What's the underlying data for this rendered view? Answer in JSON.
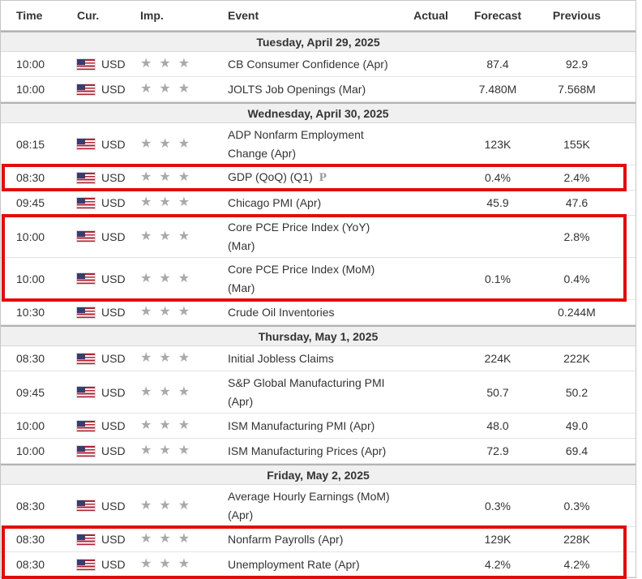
{
  "colors": {
    "highlight_border": "#e10c0c",
    "text": "#333333",
    "separator_bg": "#f0f0f0",
    "star": "#a9a9a9",
    "row_border": "#e3e3e3",
    "table_border": "#c6c6c6",
    "flag_red": "#b22234",
    "flag_blue": "#3c3b6e"
  },
  "table": {
    "columns": [
      "Time",
      "Cur.",
      "Imp.",
      "Event",
      "Actual",
      "Forecast",
      "Previous"
    ],
    "sections": [
      {
        "date": "Tuesday, April 29, 2025",
        "rows": [
          {
            "time": "10:00",
            "currency": "USD",
            "importance": 3,
            "importance_display": "★★★",
            "event": "CB Consumer Confidence (Apr)",
            "actual": "",
            "forecast": "87.4",
            "previous": "92.9",
            "highlighted": false
          },
          {
            "time": "10:00",
            "currency": "USD",
            "importance": 3,
            "importance_display": "★★★",
            "event": "JOLTS Job Openings (Mar)",
            "actual": "",
            "forecast": "7.480M",
            "previous": "7.568M",
            "highlighted": false
          }
        ]
      },
      {
        "date": "Wednesday, April 30, 2025",
        "rows": [
          {
            "time": "08:15",
            "currency": "USD",
            "importance": 3,
            "importance_display": "★★★",
            "event": "ADP Nonfarm Employment\nChange (Apr)",
            "actual": "",
            "forecast": "123K",
            "previous": "155K",
            "highlighted": false
          },
          {
            "time": "08:30",
            "currency": "USD",
            "importance": 3,
            "importance_display": "★★★",
            "event": "GDP (QoQ) (Q1)",
            "marker": "P",
            "actual": "",
            "forecast": "0.4%",
            "previous": "2.4%",
            "highlighted": true
          },
          {
            "time": "09:45",
            "currency": "USD",
            "importance": 3,
            "importance_display": "★★★",
            "event": "Chicago PMI (Apr)",
            "actual": "",
            "forecast": "45.9",
            "previous": "47.6",
            "highlighted": false
          },
          {
            "time": "10:00",
            "currency": "USD",
            "importance": 3,
            "importance_display": "★★★",
            "event": "Core PCE Price Index (YoY)\n(Mar)",
            "actual": "",
            "forecast": "",
            "previous": "2.8%",
            "highlighted": true
          },
          {
            "time": "10:00",
            "currency": "USD",
            "importance": 3,
            "importance_display": "★★★",
            "event": "Core PCE Price Index (MoM)\n(Mar)",
            "actual": "",
            "forecast": "0.1%",
            "previous": "0.4%",
            "highlighted": true
          },
          {
            "time": "10:30",
            "currency": "USD",
            "importance": 3,
            "importance_display": "★★★",
            "event": "Crude Oil Inventories",
            "actual": "",
            "forecast": "",
            "previous": "0.244M",
            "highlighted": false
          }
        ]
      },
      {
        "date": "Thursday, May 1, 2025",
        "rows": [
          {
            "time": "08:30",
            "currency": "USD",
            "importance": 3,
            "importance_display": "★★★",
            "event": "Initial Jobless Claims",
            "actual": "",
            "forecast": "224K",
            "previous": "222K",
            "highlighted": false
          },
          {
            "time": "09:45",
            "currency": "USD",
            "importance": 3,
            "importance_display": "★★★",
            "event": "S&P Global Manufacturing PMI\n(Apr)",
            "actual": "",
            "forecast": "50.7",
            "previous": "50.2",
            "highlighted": false
          },
          {
            "time": "10:00",
            "currency": "USD",
            "importance": 3,
            "importance_display": "★★★",
            "event": "ISM Manufacturing PMI (Apr)",
            "actual": "",
            "forecast": "48.0",
            "previous": "49.0",
            "highlighted": false
          },
          {
            "time": "10:00",
            "currency": "USD",
            "importance": 3,
            "importance_display": "★★★",
            "event": "ISM Manufacturing Prices (Apr)",
            "actual": "",
            "forecast": "72.9",
            "previous": "69.4",
            "highlighted": false
          }
        ]
      },
      {
        "date": "Friday, May 2, 2025",
        "rows": [
          {
            "time": "08:30",
            "currency": "USD",
            "importance": 3,
            "importance_display": "★★★",
            "event": "Average Hourly Earnings (MoM)\n(Apr)",
            "actual": "",
            "forecast": "0.3%",
            "previous": "0.3%",
            "highlighted": false
          },
          {
            "time": "08:30",
            "currency": "USD",
            "importance": 3,
            "importance_display": "★★★",
            "event": "Nonfarm Payrolls (Apr)",
            "actual": "",
            "forecast": "129K",
            "previous": "228K",
            "highlighted": true
          },
          {
            "time": "08:30",
            "currency": "USD",
            "importance": 3,
            "importance_display": "★★★",
            "event": "Unemployment Rate (Apr)",
            "actual": "",
            "forecast": "4.2%",
            "previous": "4.2%",
            "highlighted": true
          }
        ]
      }
    ]
  }
}
